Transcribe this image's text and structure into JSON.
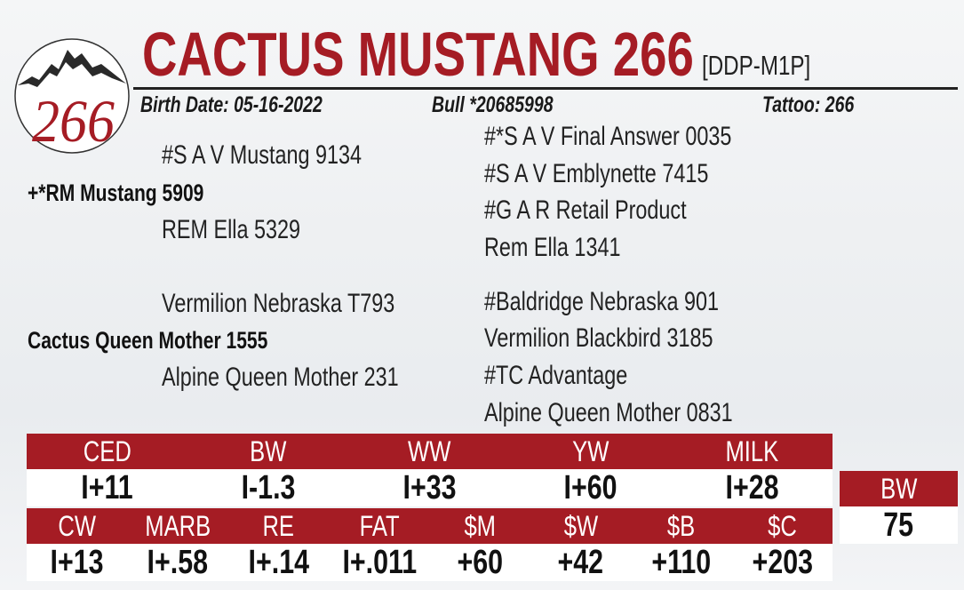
{
  "logo": {
    "number": "266",
    "alt": "mountain-circle-logo"
  },
  "header": {
    "title": "CACTUS MUSTANG 266",
    "code": "[DDP-M1P]",
    "birth_date": "Birth Date: 05-16-2022",
    "registration": "Bull *20685998",
    "tattoo": "Tattoo: 266"
  },
  "pedigree": {
    "sire": "+*RM Mustang 5909",
    "sire_sire": "#S A V Mustang 9134",
    "sire_dam": "REM Ella 5329",
    "sire_sire_sire": "#*S A V Final Answer 0035",
    "sire_sire_dam": "#S A V Emblynette 7415",
    "sire_dam_sire": "#G A R Retail Product",
    "sire_dam_dam": "Rem Ella 1341",
    "dam": "Cactus Queen Mother 1555",
    "dam_sire": "Vermilion Nebraska T793",
    "dam_dam": "Alpine Queen Mother 231",
    "dam_sire_sire": "#Baldridge Nebraska 901",
    "dam_sire_dam": "Vermilion Blackbird 3185",
    "dam_dam_sire": "#TC Advantage",
    "dam_dam_dam": "Alpine Queen Mother 0831"
  },
  "epds_row1": {
    "headers": [
      "CED",
      "BW",
      "WW",
      "YW",
      "MILK"
    ],
    "values": [
      "I+11",
      "I-1.3",
      "I+33",
      "I+60",
      "I+28"
    ]
  },
  "epds_row2": {
    "headers": [
      "CW",
      "MARB",
      "RE",
      "FAT",
      "$M",
      "$W",
      "$B",
      "$C"
    ],
    "values": [
      "I+13",
      "I+.58",
      "I+.14",
      "I+.011",
      "+60",
      "+42",
      "+110",
      "+203"
    ]
  },
  "actual_bw": {
    "header": "BW",
    "value": "75"
  },
  "colors": {
    "accent": "#a51c24"
  }
}
